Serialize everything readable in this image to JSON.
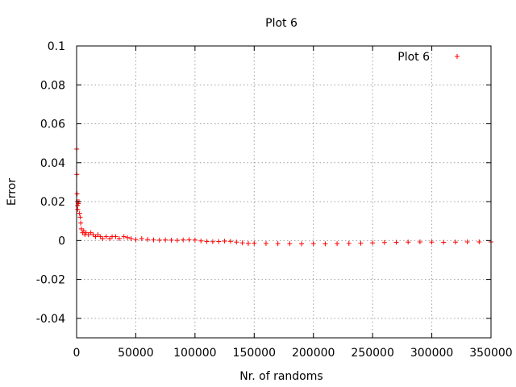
{
  "chart_data": {
    "type": "scatter",
    "title": "Plot 6",
    "xlabel": "Nr. of randoms",
    "ylabel": "Error",
    "xlim": [
      0,
      350000
    ],
    "ylim": [
      -0.05,
      0.1
    ],
    "x_ticks": [
      0,
      50000,
      100000,
      150000,
      200000,
      250000,
      300000,
      350000
    ],
    "x_tick_labels": [
      "0",
      "50000",
      "100000",
      "150000",
      "200000",
      "250000",
      "300000",
      "350000"
    ],
    "y_ticks": [
      -0.04,
      -0.02,
      0,
      0.02,
      0.04,
      0.06,
      0.08,
      0.1
    ],
    "y_tick_labels": [
      "-0.04",
      "-0.02",
      "0",
      "0.02",
      "0.04",
      "0.06",
      "0.08",
      "0.1"
    ],
    "grid": true,
    "legend_position": "top-right",
    "series": [
      {
        "name": "Plot 6",
        "color": "#ff0000",
        "marker": "plus",
        "x": [
          100,
          200,
          400,
          600,
          800,
          1000,
          1500,
          2000,
          2500,
          3000,
          3500,
          4000,
          5000,
          6000,
          7000,
          8000,
          10000,
          12000,
          14000,
          16000,
          18000,
          20000,
          22000,
          25000,
          28000,
          30000,
          33000,
          36000,
          40000,
          43000,
          46000,
          50000,
          55000,
          60000,
          65000,
          70000,
          75000,
          80000,
          85000,
          90000,
          95000,
          100000,
          105000,
          110000,
          115000,
          120000,
          125000,
          130000,
          135000,
          140000,
          145000,
          150000,
          160000,
          170000,
          180000,
          190000,
          200000,
          210000,
          220000,
          230000,
          240000,
          250000,
          260000,
          270000,
          280000,
          290000,
          300000,
          310000,
          320000,
          330000,
          340000,
          350000
        ],
        "y": [
          0.047,
          0.034,
          0.024,
          0.02,
          0.018,
          0.016,
          0.019,
          0.02,
          0.014,
          0.012,
          0.009,
          0.006,
          0.004,
          0.005,
          0.003,
          0.004,
          0.003,
          0.004,
          0.003,
          0.002,
          0.003,
          0.002,
          0.001,
          0.002,
          0.001,
          0.002,
          0.002,
          0.001,
          0.002,
          0.0015,
          0.001,
          0.0005,
          0.001,
          0.0005,
          0.0003,
          0.0002,
          0.0003,
          0.0002,
          0.0001,
          0.0003,
          0.0004,
          0.0003,
          -0.0002,
          -0.0005,
          -0.0006,
          -0.0005,
          -0.0003,
          -0.0004,
          -0.0008,
          -0.0012,
          -0.0015,
          -0.0014,
          -0.0015,
          -0.0016,
          -0.0016,
          -0.0017,
          -0.0016,
          -0.0017,
          -0.0016,
          -0.0015,
          -0.0014,
          -0.0012,
          -0.001,
          -0.0009,
          -0.0008,
          -0.0007,
          -0.0008,
          -0.0009,
          -0.0008,
          -0.0007,
          -0.0007,
          -0.0007
        ]
      }
    ]
  }
}
